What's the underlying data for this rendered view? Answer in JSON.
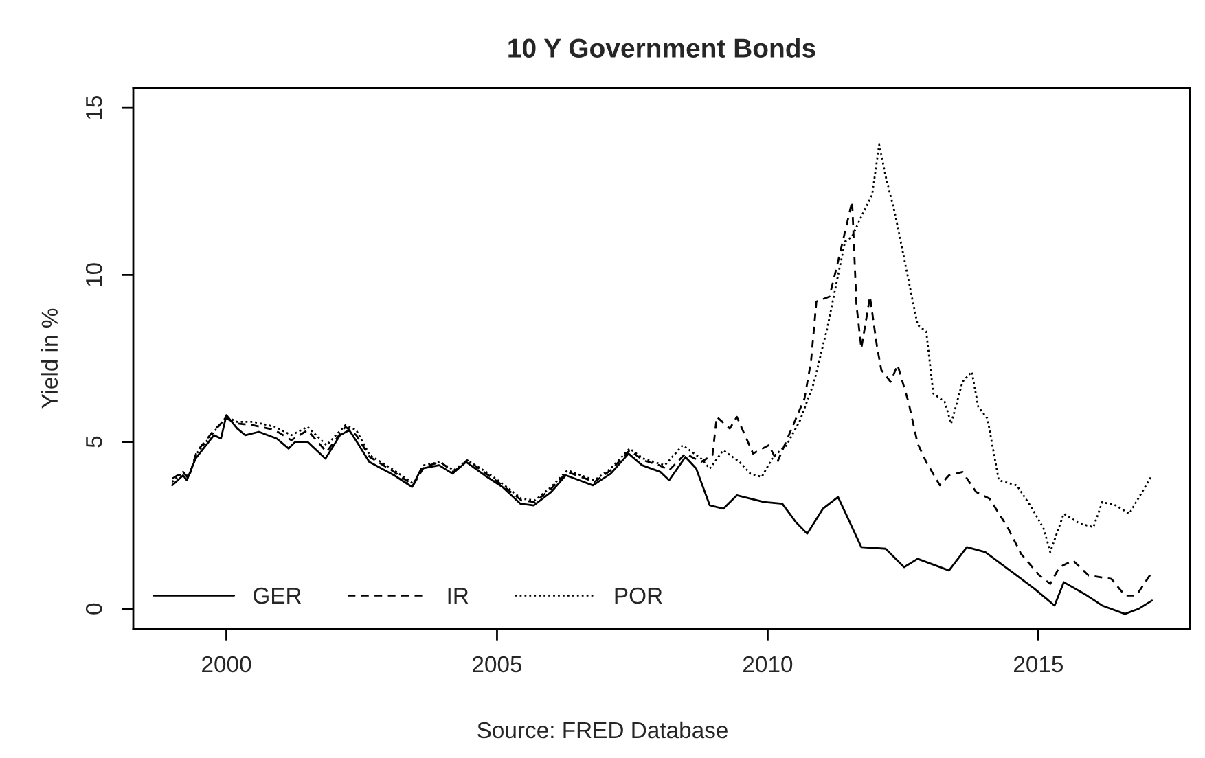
{
  "chart_data": {
    "type": "line",
    "title": "10 Y Government Bonds",
    "ylabel": "Yield in %",
    "annotations": [
      "Source: FRED Database"
    ],
    "xlim": [
      1998.28,
      2017.8
    ],
    "xticks": [
      2000,
      2005,
      2010,
      2015
    ],
    "ylim": [
      -0.6,
      15.6
    ],
    "yticks": [
      0,
      5,
      10,
      15
    ],
    "grid": false,
    "legend": "bottom left",
    "marker": "none",
    "series": [
      {
        "name": "GER",
        "color": "#000000",
        "line_style": "solid",
        "x": [
          1999.0,
          1999.2,
          1999.27,
          1999.43,
          1999.77,
          1999.9,
          2000.0,
          2000.2,
          2000.35,
          2000.6,
          2000.93,
          2001.15,
          2001.27,
          2001.5,
          2001.83,
          2002.1,
          2002.27,
          2002.43,
          2002.64,
          2003.1,
          2003.43,
          2003.6,
          2003.93,
          2004.18,
          2004.43,
          2004.77,
          2005.1,
          2005.43,
          2005.68,
          2006.0,
          2006.27,
          2006.52,
          2006.77,
          2007.1,
          2007.43,
          2007.68,
          2008.02,
          2008.18,
          2008.48,
          2008.68,
          2008.93,
          2009.18,
          2009.43,
          2009.93,
          2010.27,
          2010.52,
          2010.73,
          2011.02,
          2011.3,
          2011.73,
          2012.18,
          2012.52,
          2012.77,
          2013.02,
          2013.35,
          2013.68,
          2014.02,
          2014.52,
          2014.93,
          2015.3,
          2015.47,
          2015.85,
          2016.18,
          2016.6,
          2016.85,
          2017.1
        ],
        "values": [
          3.7,
          4.0,
          3.85,
          4.5,
          5.2,
          5.1,
          5.8,
          5.4,
          5.2,
          5.3,
          5.1,
          4.8,
          5.0,
          5.0,
          4.5,
          5.2,
          5.35,
          4.95,
          4.4,
          4.0,
          3.65,
          4.2,
          4.3,
          4.05,
          4.4,
          4.0,
          3.65,
          3.15,
          3.1,
          3.5,
          4.0,
          3.85,
          3.7,
          4.05,
          4.65,
          4.3,
          4.1,
          3.85,
          4.55,
          4.2,
          3.1,
          3.0,
          3.4,
          3.2,
          3.15,
          2.6,
          2.25,
          3.0,
          3.35,
          1.85,
          1.8,
          1.25,
          1.5,
          1.35,
          1.15,
          1.85,
          1.7,
          1.1,
          0.6,
          0.1,
          0.8,
          0.45,
          0.1,
          -0.15,
          0.0,
          0.25
        ]
      },
      {
        "name": "IR",
        "color": "#000000",
        "line_style": "dashed",
        "x": [
          1999.0,
          1999.2,
          1999.3,
          1999.45,
          1999.77,
          2000.0,
          2000.2,
          2000.5,
          2000.9,
          2001.2,
          2001.5,
          2001.85,
          2002.2,
          2002.4,
          2002.65,
          2003.1,
          2003.45,
          2003.65,
          2003.95,
          2004.2,
          2004.45,
          2004.8,
          2005.1,
          2005.45,
          2005.7,
          2006.0,
          2006.3,
          2006.55,
          2006.8,
          2007.1,
          2007.45,
          2007.7,
          2008.0,
          2008.18,
          2008.48,
          2008.77,
          2008.98,
          2009.06,
          2009.3,
          2009.43,
          2009.73,
          2010.02,
          2010.18,
          2010.43,
          2010.68,
          2010.8,
          2010.9,
          2011.14,
          2011.27,
          2011.43,
          2011.56,
          2011.64,
          2011.73,
          2011.89,
          2012.02,
          2012.1,
          2012.27,
          2012.4,
          2012.6,
          2012.77,
          2012.93,
          2013.18,
          2013.35,
          2013.6,
          2013.85,
          2014.1,
          2014.43,
          2014.68,
          2015.02,
          2015.22,
          2015.39,
          2015.64,
          2015.93,
          2016.35,
          2016.6,
          2016.81,
          2017.1
        ],
        "values": [
          3.9,
          4.1,
          3.9,
          4.7,
          5.35,
          5.7,
          5.55,
          5.5,
          5.35,
          5.05,
          5.35,
          4.7,
          5.45,
          5.2,
          4.55,
          4.1,
          3.7,
          4.25,
          4.4,
          4.1,
          4.45,
          4.05,
          3.7,
          3.25,
          3.2,
          3.6,
          4.1,
          3.95,
          3.8,
          4.15,
          4.75,
          4.45,
          4.3,
          4.15,
          4.65,
          4.4,
          4.6,
          5.75,
          5.4,
          5.75,
          4.65,
          4.9,
          4.4,
          5.35,
          6.3,
          7.4,
          9.2,
          9.35,
          10.2,
          11.3,
          12.2,
          9.1,
          7.8,
          9.35,
          7.85,
          7.15,
          6.8,
          7.3,
          6.2,
          4.95,
          4.4,
          3.7,
          4.0,
          4.1,
          3.5,
          3.3,
          2.45,
          1.65,
          1.0,
          0.75,
          1.25,
          1.45,
          1.0,
          0.9,
          0.4,
          0.4,
          1.1
        ]
      },
      {
        "name": "POR",
        "color": "#000000",
        "line_style": "dotted",
        "x": [
          1999.0,
          1999.2,
          1999.3,
          1999.45,
          1999.77,
          2000.0,
          2000.2,
          2000.5,
          2000.9,
          2001.2,
          2001.5,
          2001.85,
          2002.2,
          2002.4,
          2002.65,
          2003.1,
          2003.45,
          2003.65,
          2003.95,
          2004.2,
          2004.45,
          2004.8,
          2005.1,
          2005.45,
          2005.7,
          2006.0,
          2006.3,
          2006.55,
          2006.8,
          2007.1,
          2007.45,
          2007.7,
          2008.0,
          2008.1,
          2008.43,
          2008.77,
          2008.93,
          2009.18,
          2009.48,
          2009.68,
          2009.89,
          2010.1,
          2010.35,
          2010.6,
          2010.85,
          2011.1,
          2011.27,
          2011.43,
          2011.56,
          2011.73,
          2011.93,
          2012.06,
          2012.18,
          2012.35,
          2012.52,
          2012.77,
          2012.93,
          2013.06,
          2013.27,
          2013.39,
          2013.6,
          2013.77,
          2013.89,
          2014.06,
          2014.27,
          2014.6,
          2014.85,
          2015.1,
          2015.22,
          2015.47,
          2015.77,
          2016.02,
          2016.18,
          2016.43,
          2016.68,
          2017.1
        ],
        "values": [
          3.8,
          4.1,
          3.95,
          4.65,
          5.3,
          5.75,
          5.6,
          5.6,
          5.45,
          5.2,
          5.45,
          4.9,
          5.5,
          5.35,
          4.6,
          4.15,
          3.75,
          4.3,
          4.4,
          4.15,
          4.45,
          4.1,
          3.75,
          3.3,
          3.25,
          3.65,
          4.15,
          4.0,
          3.85,
          4.2,
          4.8,
          4.5,
          4.35,
          4.3,
          4.9,
          4.5,
          4.2,
          4.75,
          4.4,
          4.05,
          3.95,
          4.55,
          4.9,
          5.65,
          6.75,
          8.4,
          9.75,
          11.0,
          11.15,
          11.75,
          12.4,
          13.9,
          12.95,
          11.85,
          10.5,
          8.5,
          8.3,
          6.45,
          6.2,
          5.55,
          6.8,
          7.1,
          6.05,
          5.7,
          3.85,
          3.7,
          3.1,
          2.4,
          1.7,
          2.85,
          2.55,
          2.45,
          3.2,
          3.1,
          2.85,
          4.0
        ]
      }
    ]
  }
}
